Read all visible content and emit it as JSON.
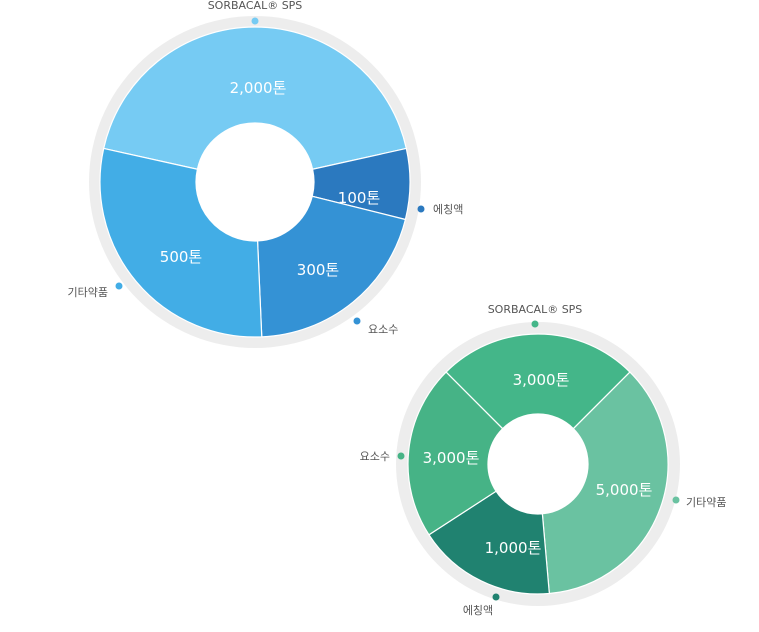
{
  "chart_data": [
    {
      "type": "pie",
      "unit": "톤",
      "colors": {
        "track": "#ededed",
        "separator": "#ffffff",
        "hole": "#ffffff"
      },
      "slices": [
        {
          "name": "SORBACAL® SPS",
          "value": 2000,
          "value_label": "2,000톤",
          "color": "#76cbf3"
        },
        {
          "name": "에칭액",
          "value": 100,
          "value_label": "100톤",
          "color": "#2b79bf"
        },
        {
          "name": "요소수",
          "value": 300,
          "value_label": "300톤",
          "color": "#3492d5"
        },
        {
          "name": "기타약품",
          "value": 500,
          "value_label": "500톤",
          "color": "#42ade6"
        }
      ]
    },
    {
      "type": "pie",
      "unit": "톤",
      "colors": {
        "track": "#ededed",
        "separator": "#ffffff",
        "hole": "#ffffff"
      },
      "slices": [
        {
          "name": "SORBACAL® SPS",
          "value": 3000,
          "value_label": "3,000톤",
          "color": "#44b689"
        },
        {
          "name": "기타약품",
          "value": 5000,
          "value_label": "5,000톤",
          "color": "#6ac2a1"
        },
        {
          "name": "에칭액",
          "value": 1000,
          "value_label": "1,000톤",
          "color": "#208270"
        },
        {
          "name": "요소수",
          "value": 3000,
          "value_label": "3,000톤",
          "color": "#46b386"
        }
      ]
    }
  ]
}
